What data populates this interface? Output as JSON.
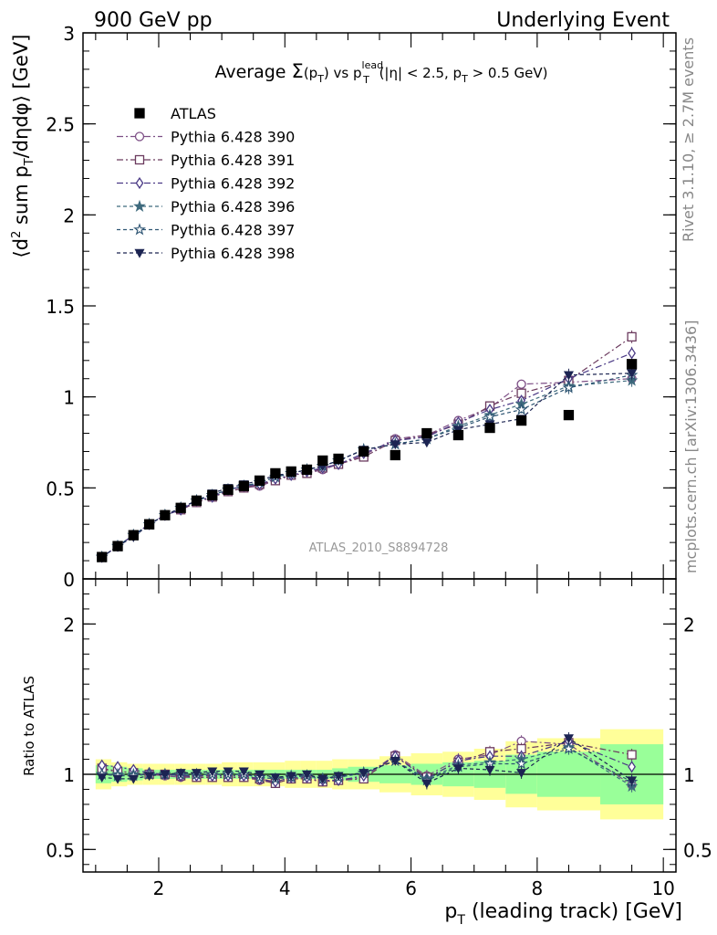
{
  "header": {
    "left": "900 GeV pp",
    "right": "Underlying Event"
  },
  "side_text": {
    "rivet": "Rivet 3.1.10, ≥ 2.7M events",
    "mcplots": "mcplots.cern.ch [arXiv:1306.3436]"
  },
  "analysis_id": "ATLAS_2010_S8894728",
  "colors": {
    "ATLAS": "#000000",
    "390": "#7d4f86",
    "391": "#6b3a5e",
    "392": "#4b3a86",
    "396": "#3e6a7d",
    "397": "#2e5573",
    "398": "#1c2452",
    "band_outer": "#ffff99",
    "band_inner": "#99ff99"
  },
  "chart_data": [
    {
      "type": "scatter",
      "panel": "main",
      "title": "Average Σ(p_T) vs p_T^lead (|η| < 2.5, p_T > 0.5 GeV)",
      "title_parts": {
        "a": "Average ",
        "b": "Σ",
        "c": "(p",
        "d": "T",
        "e": ") vs p",
        "f": "lead",
        "g": "T",
        "h": " (|η| < 2.5, p",
        "i": "T",
        "j": " > 0.5 GeV)"
      },
      "ylabel": "⟨d² sum p_T/dηdφ⟩ [GeV]",
      "ylabel_parts": {
        "a": "⟨d",
        "b": "2",
        "c": " sum p",
        "d": "T",
        "e": "/dηdφ⟩ [GeV]"
      },
      "xlim": [
        0.8,
        10.2
      ],
      "ylim": [
        0,
        3
      ],
      "y_ticks": [
        0,
        0.5,
        1,
        1.5,
        2,
        2.5,
        3
      ],
      "y_tick_labels": [
        "0",
        "0.5",
        "1",
        "1.5",
        "2",
        "2.5",
        "3"
      ],
      "legend_position": "top-left",
      "x": [
        1.1,
        1.35,
        1.6,
        1.85,
        2.1,
        2.35,
        2.6,
        2.85,
        3.1,
        3.35,
        3.6,
        3.85,
        4.1,
        4.35,
        4.6,
        4.85,
        5.25,
        5.75,
        6.25,
        6.75,
        7.25,
        7.75,
        8.5,
        9.5
      ],
      "series": [
        {
          "name": "ATLAS",
          "marker": "filled-square",
          "values": [
            0.12,
            0.18,
            0.24,
            0.3,
            0.35,
            0.39,
            0.43,
            0.46,
            0.49,
            0.51,
            0.54,
            0.58,
            0.59,
            0.6,
            0.65,
            0.66,
            0.7,
            0.68,
            0.8,
            0.79,
            0.83,
            0.87,
            0.9,
            1.18
          ]
        },
        {
          "name": "Pythia 6.428 390",
          "marker": "open-circle",
          "dash": "dash-dot",
          "values": [
            0.12,
            0.18,
            0.24,
            0.3,
            0.35,
            0.38,
            0.42,
            0.45,
            0.48,
            0.5,
            0.51,
            0.54,
            0.57,
            0.58,
            0.6,
            0.63,
            0.68,
            0.77,
            0.79,
            0.87,
            0.94,
            1.07,
            1.08,
            1.1
          ]
        },
        {
          "name": "Pythia 6.428 391",
          "marker": "open-square",
          "dash": "dash-dot",
          "values": [
            0.12,
            0.18,
            0.24,
            0.3,
            0.35,
            0.38,
            0.42,
            0.45,
            0.48,
            0.5,
            0.52,
            0.54,
            0.57,
            0.58,
            0.61,
            0.63,
            0.67,
            0.76,
            0.79,
            0.85,
            0.95,
            1.02,
            1.09,
            1.33
          ]
        },
        {
          "name": "Pythia 6.428 392",
          "marker": "open-diamond",
          "dash": "dash-dot",
          "values": [
            0.12,
            0.18,
            0.24,
            0.3,
            0.35,
            0.38,
            0.43,
            0.45,
            0.49,
            0.51,
            0.52,
            0.55,
            0.57,
            0.59,
            0.61,
            0.63,
            0.69,
            0.76,
            0.78,
            0.86,
            0.93,
            0.98,
            1.1,
            1.24
          ]
        },
        {
          "name": "Pythia 6.428 396",
          "marker": "filled-star",
          "dash": "dashed",
          "values": [
            0.12,
            0.18,
            0.24,
            0.3,
            0.35,
            0.39,
            0.43,
            0.46,
            0.49,
            0.51,
            0.53,
            0.56,
            0.58,
            0.6,
            0.62,
            0.65,
            0.71,
            0.74,
            0.77,
            0.84,
            0.9,
            0.96,
            1.06,
            1.09
          ]
        },
        {
          "name": "Pythia 6.428 397",
          "marker": "open-star",
          "dash": "dashed",
          "values": [
            0.12,
            0.18,
            0.24,
            0.3,
            0.35,
            0.39,
            0.43,
            0.46,
            0.49,
            0.51,
            0.53,
            0.56,
            0.58,
            0.6,
            0.62,
            0.65,
            0.71,
            0.74,
            0.77,
            0.83,
            0.89,
            0.93,
            1.05,
            1.12
          ]
        },
        {
          "name": "Pythia 6.428 398",
          "marker": "filled-triangle-down",
          "dash": "dashed",
          "values": [
            0.12,
            0.18,
            0.23,
            0.3,
            0.35,
            0.39,
            0.43,
            0.47,
            0.5,
            0.52,
            0.54,
            0.57,
            0.58,
            0.6,
            0.62,
            0.65,
            0.71,
            0.74,
            0.75,
            0.82,
            0.85,
            0.88,
            1.12,
            1.13
          ]
        }
      ]
    },
    {
      "type": "scatter",
      "panel": "ratio",
      "ylabel": "Ratio to ATLAS",
      "xlabel": "p_T (leading track) [GeV]",
      "xlabel_parts": {
        "a": "p",
        "b": "T",
        "c": " (leading track) [GeV]"
      },
      "xlim": [
        0.8,
        10.2
      ],
      "ylim": [
        0.35,
        2.3
      ],
      "x_ticks": [
        2,
        4,
        6,
        8,
        10
      ],
      "x_tick_labels": [
        "2",
        "4",
        "6",
        "8",
        "10"
      ],
      "y_ticks": [
        0.5,
        1,
        2
      ],
      "y_tick_labels": [
        "0.5",
        "1",
        "2"
      ],
      "x": [
        1.1,
        1.35,
        1.6,
        1.85,
        2.1,
        2.35,
        2.6,
        2.85,
        3.1,
        3.35,
        3.6,
        3.85,
        4.1,
        4.35,
        4.6,
        4.85,
        5.25,
        5.75,
        6.25,
        6.75,
        7.25,
        7.75,
        8.5,
        9.5
      ],
      "bin_edges": [
        1.0,
        1.25,
        1.5,
        1.75,
        2.0,
        2.25,
        2.5,
        2.75,
        3.0,
        3.25,
        3.5,
        3.75,
        4.0,
        4.25,
        4.5,
        4.75,
        5.0,
        5.5,
        6.0,
        6.5,
        7.0,
        7.5,
        8.0,
        9.0,
        10.0
      ],
      "band_inner_halfwidth": [
        0.06,
        0.05,
        0.04,
        0.03,
        0.03,
        0.03,
        0.03,
        0.03,
        0.03,
        0.03,
        0.03,
        0.03,
        0.03,
        0.03,
        0.03,
        0.04,
        0.05,
        0.06,
        0.07,
        0.08,
        0.09,
        0.13,
        0.15,
        0.2
      ],
      "band_outer_halfwidth": [
        0.1,
        0.08,
        0.07,
        0.07,
        0.07,
        0.07,
        0.07,
        0.07,
        0.08,
        0.08,
        0.08,
        0.08,
        0.09,
        0.09,
        0.09,
        0.1,
        0.1,
        0.12,
        0.14,
        0.15,
        0.17,
        0.22,
        0.24,
        0.3
      ],
      "series": [
        {
          "name": "Pythia 6.428 390",
          "values": [
            1.03,
            1.02,
            1.01,
            1.0,
            0.99,
            0.98,
            0.98,
            0.98,
            0.98,
            0.98,
            0.96,
            0.94,
            0.97,
            0.97,
            0.95,
            0.96,
            0.98,
            1.13,
            0.99,
            1.1,
            1.13,
            1.22,
            1.2,
            0.93
          ]
        },
        {
          "name": "Pythia 6.428 391",
          "values": [
            1.04,
            1.02,
            1.01,
            1.0,
            1.0,
            0.99,
            0.98,
            0.98,
            0.98,
            0.98,
            0.97,
            0.94,
            0.97,
            0.97,
            0.95,
            0.96,
            0.97,
            1.12,
            0.98,
            1.08,
            1.15,
            1.17,
            1.21,
            1.13
          ]
        },
        {
          "name": "Pythia 6.428 392",
          "values": [
            1.06,
            1.05,
            1.03,
            1.01,
            1.0,
            0.99,
            0.99,
            0.99,
            0.99,
            0.99,
            0.97,
            0.95,
            0.98,
            0.98,
            0.96,
            0.96,
            0.99,
            1.12,
            0.97,
            1.09,
            1.12,
            1.12,
            1.22,
            1.05
          ]
        },
        {
          "name": "Pythia 6.428 396",
          "values": [
            1.0,
            1.0,
            1.0,
            1.0,
            1.0,
            1.0,
            1.0,
            1.0,
            1.0,
            1.0,
            0.98,
            0.97,
            0.99,
            0.99,
            0.97,
            0.98,
            1.01,
            1.09,
            0.97,
            1.06,
            1.08,
            1.1,
            1.18,
            0.92
          ]
        },
        {
          "name": "Pythia 6.428 397",
          "values": [
            1.0,
            0.99,
            0.99,
            1.0,
            1.0,
            1.0,
            1.0,
            1.0,
            1.0,
            1.0,
            0.98,
            0.97,
            0.98,
            0.99,
            0.97,
            0.98,
            1.01,
            1.09,
            0.96,
            1.05,
            1.07,
            1.07,
            1.17,
            0.95
          ]
        },
        {
          "name": "Pythia 6.428 398",
          "values": [
            0.98,
            0.97,
            0.97,
            0.99,
            1.0,
            1.01,
            1.01,
            1.02,
            1.02,
            1.02,
            1.0,
            0.98,
            0.99,
            1.0,
            0.97,
            0.99,
            1.01,
            1.09,
            0.94,
            1.04,
            1.03,
            1.01,
            1.24,
            0.96
          ]
        }
      ]
    }
  ]
}
